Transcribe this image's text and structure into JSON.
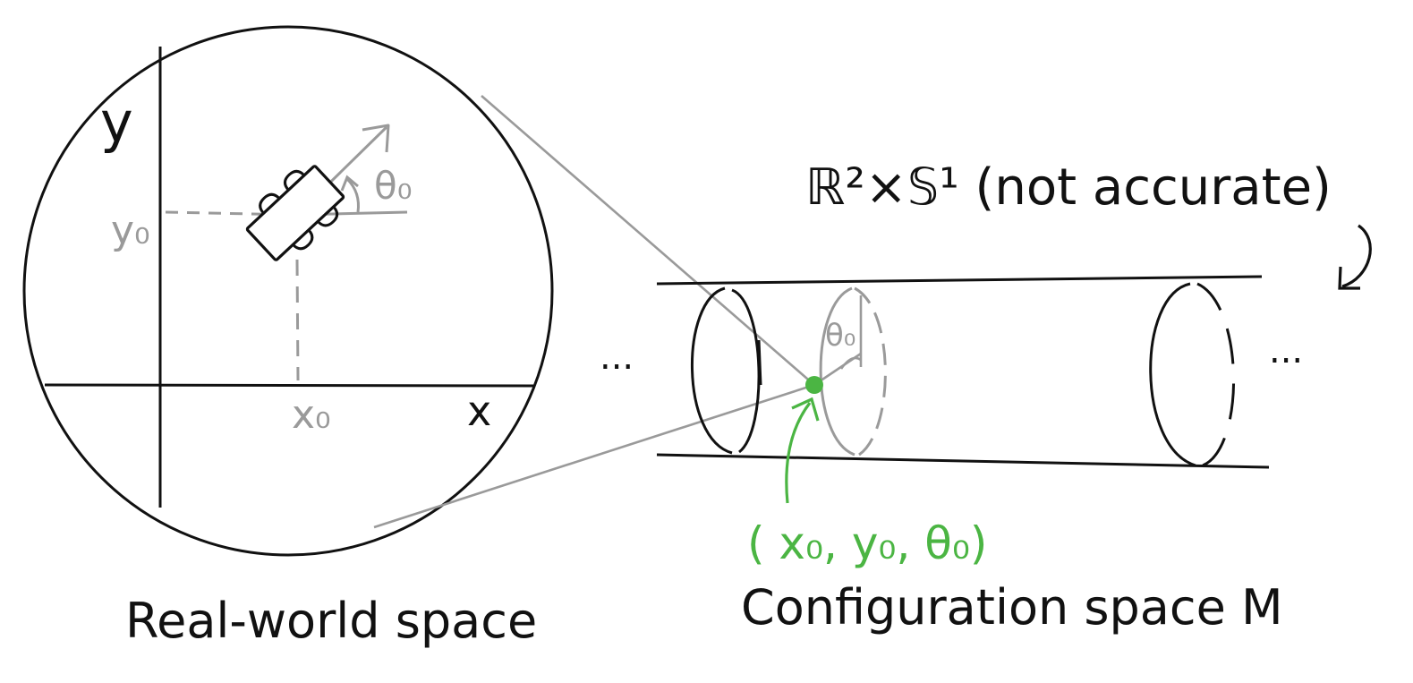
{
  "real_world": {
    "axis_y_label": "y",
    "axis_x_label": "x",
    "x0_label": "x₀",
    "y0_label": "y₀",
    "theta_label": "θ₀",
    "caption": "Real-world space"
  },
  "config_space": {
    "manifold_label": "ℝ²×𝕊¹ (not accurate)",
    "theta_label": "θ₀",
    "left_dots": "...",
    "right_dots": "...",
    "point_label": "( x₀, y₀, θ₀)",
    "caption": "Configuration space M"
  },
  "colors": {
    "ink": "#111111",
    "gray": "#9a9a9a",
    "green": "#4bb543"
  }
}
